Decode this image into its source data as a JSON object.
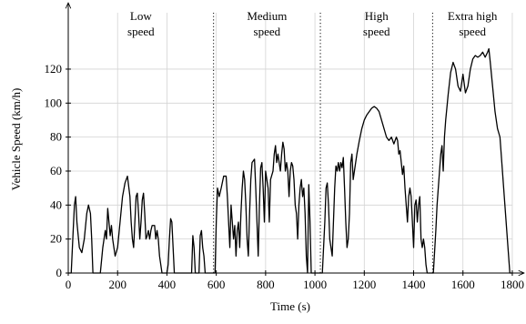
{
  "chart_data": {
    "type": "line",
    "xlabel": "Time (s)",
    "ylabel": "Vehicle Speed (km/h)",
    "xlim": [
      0,
      1850
    ],
    "ylim": [
      0,
      158
    ],
    "xticks": [
      0,
      200,
      400,
      600,
      800,
      1000,
      1200,
      1400,
      1600,
      1800
    ],
    "yticks": [
      0,
      20,
      40,
      60,
      80,
      100,
      120
    ],
    "grid": true,
    "color": "#000000",
    "phase_boundaries": [
      589,
      1022,
      1477
    ],
    "phase_labels": [
      [
        "Low",
        "speed"
      ],
      [
        "Medium",
        "speed"
      ],
      [
        "High",
        "speed"
      ],
      [
        "Extra high",
        "speed"
      ]
    ],
    "x": [
      0,
      12,
      20,
      25,
      30,
      35,
      45,
      55,
      65,
      75,
      82,
      90,
      95,
      100,
      130,
      140,
      150,
      155,
      160,
      165,
      170,
      175,
      180,
      190,
      200,
      210,
      220,
      230,
      240,
      250,
      255,
      260,
      265,
      270,
      275,
      280,
      285,
      290,
      295,
      300,
      305,
      310,
      315,
      320,
      325,
      330,
      335,
      340,
      350,
      355,
      360,
      365,
      370,
      375,
      380,
      400,
      405,
      410,
      415,
      420,
      425,
      430,
      500,
      505,
      510,
      515,
      530,
      535,
      540,
      545,
      550,
      555,
      589,
      595,
      600,
      605,
      612,
      620,
      630,
      640,
      645,
      650,
      655,
      660,
      665,
      670,
      675,
      680,
      685,
      690,
      695,
      700,
      705,
      710,
      715,
      720,
      725,
      730,
      735,
      740,
      745,
      755,
      760,
      765,
      770,
      775,
      780,
      785,
      790,
      795,
      800,
      810,
      815,
      820,
      830,
      835,
      840,
      845,
      850,
      855,
      860,
      865,
      870,
      875,
      880,
      885,
      890,
      895,
      900,
      905,
      910,
      915,
      920,
      925,
      930,
      935,
      940,
      945,
      950,
      955,
      960,
      965,
      970,
      975,
      980,
      985,
      1022,
      1030,
      1040,
      1045,
      1050,
      1055,
      1060,
      1070,
      1075,
      1080,
      1085,
      1090,
      1095,
      1100,
      1105,
      1110,
      1115,
      1120,
      1125,
      1130,
      1135,
      1140,
      1145,
      1150,
      1155,
      1160,
      1170,
      1180,
      1190,
      1200,
      1210,
      1220,
      1230,
      1240,
      1250,
      1260,
      1270,
      1280,
      1290,
      1300,
      1310,
      1320,
      1330,
      1335,
      1340,
      1345,
      1350,
      1355,
      1360,
      1365,
      1370,
      1375,
      1380,
      1385,
      1390,
      1395,
      1400,
      1405,
      1410,
      1415,
      1420,
      1425,
      1430,
      1435,
      1440,
      1445,
      1450,
      1455,
      1477,
      1480,
      1490,
      1495,
      1500,
      1505,
      1510,
      1515,
      1520,
      1525,
      1530,
      1540,
      1550,
      1560,
      1570,
      1580,
      1590,
      1600,
      1610,
      1620,
      1630,
      1640,
      1650,
      1660,
      1670,
      1680,
      1690,
      1700,
      1705,
      1710,
      1720,
      1730,
      1740,
      1750,
      1760,
      1770,
      1780,
      1790,
      1800
    ],
    "values": [
      0,
      0,
      25,
      40,
      45,
      30,
      15,
      12,
      20,
      35,
      40,
      35,
      20,
      0,
      0,
      15,
      25,
      20,
      38,
      30,
      22,
      28,
      20,
      10,
      15,
      30,
      45,
      53,
      57,
      45,
      30,
      20,
      15,
      30,
      45,
      47,
      35,
      20,
      30,
      43,
      47,
      35,
      20,
      22,
      25,
      20,
      25,
      28,
      28,
      20,
      25,
      20,
      10,
      5,
      0,
      0,
      5,
      20,
      32,
      30,
      15,
      0,
      0,
      22,
      15,
      0,
      0,
      22,
      25,
      15,
      10,
      0,
      0,
      0,
      30,
      50,
      45,
      50,
      57,
      57,
      45,
      30,
      15,
      40,
      30,
      20,
      28,
      10,
      25,
      30,
      15,
      35,
      50,
      60,
      55,
      40,
      20,
      10,
      35,
      55,
      65,
      67,
      50,
      30,
      10,
      40,
      62,
      65,
      50,
      30,
      60,
      50,
      30,
      55,
      60,
      70,
      75,
      65,
      70,
      65,
      60,
      70,
      77,
      73,
      60,
      65,
      60,
      45,
      60,
      65,
      63,
      55,
      40,
      35,
      20,
      40,
      50,
      55,
      45,
      50,
      35,
      10,
      0,
      52,
      30,
      0,
      0,
      0,
      30,
      50,
      53,
      40,
      20,
      10,
      30,
      50,
      63,
      60,
      65,
      60,
      65,
      62,
      68,
      50,
      30,
      15,
      20,
      35,
      65,
      70,
      55,
      60,
      70,
      78,
      85,
      90,
      93,
      95,
      97,
      98,
      97,
      95,
      90,
      85,
      80,
      78,
      80,
      76,
      80,
      78,
      70,
      72,
      65,
      58,
      63,
      50,
      40,
      30,
      45,
      50,
      45,
      30,
      15,
      40,
      43,
      30,
      40,
      45,
      20,
      15,
      20,
      15,
      5,
      0,
      0,
      0,
      25,
      40,
      50,
      60,
      70,
      75,
      60,
      80,
      90,
      105,
      118,
      124,
      120,
      110,
      107,
      117,
      106,
      110,
      120,
      126,
      128,
      127,
      128,
      130,
      127,
      130,
      132,
      125,
      110,
      95,
      85,
      80,
      60,
      40,
      20,
      0,
      0
    ]
  }
}
